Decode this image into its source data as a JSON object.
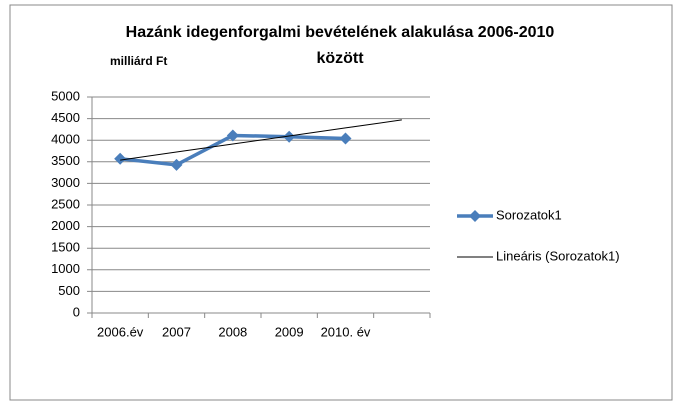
{
  "chart_data": {
    "type": "line",
    "title": [
      "Hazánk idegenforgalmi bevételének alakulása 2006-2010",
      "között"
    ],
    "y_label": "milliárd Ft",
    "categories": [
      "2006.év",
      "2007",
      "2008",
      "2009",
      "2010. év",
      null
    ],
    "series": [
      {
        "name": "Sorozatok1",
        "color": "#4a7ebb",
        "values": [
          3570,
          3430,
          4110,
          4080,
          4040,
          null
        ]
      },
      {
        "name": "Lineáris (Sorozatok1)",
        "color": "#000000",
        "values": [
          3540,
          3726,
          3912,
          4098,
          4284,
          4470
        ]
      }
    ],
    "ylim": [
      0,
      5000
    ],
    "yticks": [
      0,
      500,
      1000,
      1500,
      2000,
      2500,
      3000,
      3500,
      4000,
      4500,
      5000
    ],
    "grid": true,
    "legend": "right"
  }
}
